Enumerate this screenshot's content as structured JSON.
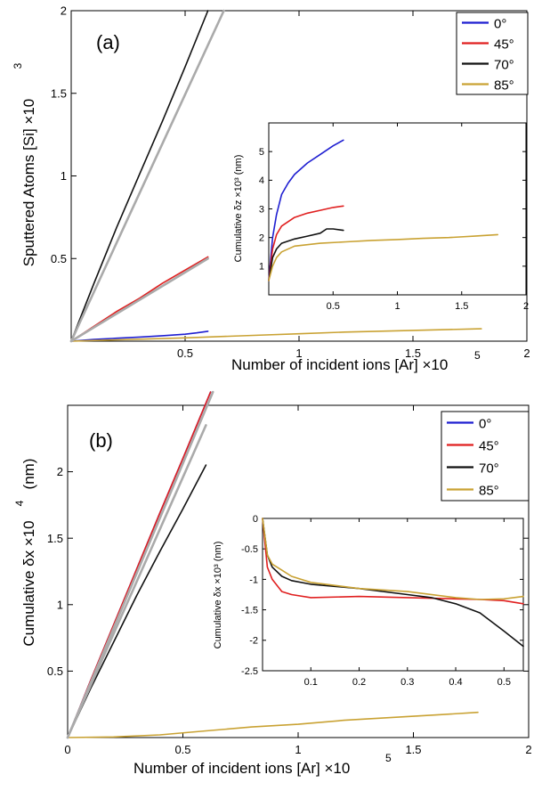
{
  "colors": {
    "deg0": "#1f1fd1",
    "deg45": "#e01f1f",
    "deg70": "#111111",
    "deg85": "#c9a233",
    "fit": "#aaaaaa"
  },
  "chart_data": [
    {
      "id": "a_main",
      "type": "line",
      "panel_label": "(a)",
      "xlabel": "Number of incident ions [Ar] ×10",
      "xlabel_exp": "5",
      "ylabel": "Sputtered Atoms [Si] ×10",
      "ylabel_exp": "3",
      "xlim": [
        0,
        2
      ],
      "ylim": [
        0,
        2
      ],
      "xticks": [
        {
          "v": 0.5,
          "label": "0.5"
        },
        {
          "v": 1,
          "label": "1"
        },
        {
          "v": 1.5,
          "label": "1.5"
        },
        {
          "v": 2,
          "label": "2"
        }
      ],
      "yticks": [
        {
          "v": 0.5,
          "label": "0.5"
        },
        {
          "v": 1,
          "label": "1"
        },
        {
          "v": 1.5,
          "label": "1.5"
        },
        {
          "v": 2,
          "label": "2"
        }
      ],
      "legend": [
        {
          "label": "0°",
          "color": "#1f1fd1"
        },
        {
          "label": "45°",
          "color": "#e01f1f"
        },
        {
          "label": "70°",
          "color": "#111111"
        },
        {
          "label": "85°",
          "color": "#c9a233"
        }
      ],
      "series": [
        {
          "name": "0°",
          "color": "#1f1fd1",
          "x": [
            0,
            0.05,
            0.1,
            0.2,
            0.3,
            0.4,
            0.5,
            0.55,
            0.6
          ],
          "y": [
            0,
            0.005,
            0.01,
            0.018,
            0.025,
            0.033,
            0.042,
            0.05,
            0.06
          ]
        },
        {
          "name": "45°",
          "color": "#e01f1f",
          "x": [
            0,
            0.1,
            0.2,
            0.3,
            0.4,
            0.5,
            0.6
          ],
          "y": [
            0,
            0.09,
            0.18,
            0.26,
            0.35,
            0.43,
            0.51
          ]
        },
        {
          "name": "70°",
          "color": "#111111",
          "x": [
            0,
            0.1,
            0.2,
            0.3,
            0.4,
            0.5,
            0.6
          ],
          "y": [
            0,
            0.35,
            0.69,
            1.01,
            1.33,
            1.66,
            2.0
          ]
        },
        {
          "name": "85°",
          "color": "#c9a233",
          "x": [
            0,
            0.2,
            0.5,
            0.8,
            1.0,
            1.2,
            1.5,
            1.8
          ],
          "y": [
            0,
            0.008,
            0.02,
            0.035,
            0.045,
            0.055,
            0.065,
            0.075
          ]
        },
        {
          "color": "#aaaaaa",
          "fit": true,
          "x": [
            0,
            0.67
          ],
          "y": [
            0,
            2.0
          ]
        },
        {
          "color": "#aaaaaa",
          "fit": true,
          "x": [
            0,
            0.6
          ],
          "y": [
            0,
            0.5
          ]
        }
      ]
    },
    {
      "id": "a_inset",
      "type": "line",
      "ylabel": "Cumulative δz ×10³ (nm)",
      "xlim": [
        0,
        2
      ],
      "ylim": [
        0,
        6
      ],
      "xticks": [
        {
          "v": 0.5,
          "label": "0.5"
        },
        {
          "v": 1,
          "label": "1"
        },
        {
          "v": 1.5,
          "label": "1.5"
        },
        {
          "v": 2,
          "label": "2"
        }
      ],
      "yticks": [
        {
          "v": 1,
          "label": "1"
        },
        {
          "v": 2,
          "label": "2"
        },
        {
          "v": 3,
          "label": "3"
        },
        {
          "v": 4,
          "label": "4"
        },
        {
          "v": 5,
          "label": "5"
        }
      ],
      "series": [
        {
          "name": "0°",
          "color": "#1f1fd1",
          "x": [
            0,
            0.03,
            0.06,
            0.1,
            0.15,
            0.2,
            0.3,
            0.4,
            0.5,
            0.58
          ],
          "y": [
            0.5,
            2.0,
            2.8,
            3.5,
            3.9,
            4.2,
            4.6,
            4.9,
            5.2,
            5.4
          ]
        },
        {
          "name": "45°",
          "color": "#e01f1f",
          "x": [
            0,
            0.03,
            0.06,
            0.1,
            0.2,
            0.3,
            0.4,
            0.5,
            0.58
          ],
          "y": [
            0.5,
            1.6,
            2.1,
            2.4,
            2.7,
            2.85,
            2.95,
            3.05,
            3.1
          ]
        },
        {
          "name": "70°",
          "color": "#111111",
          "x": [
            0,
            0.03,
            0.06,
            0.1,
            0.2,
            0.3,
            0.4,
            0.45,
            0.5,
            0.58
          ],
          "y": [
            0.5,
            1.3,
            1.6,
            1.8,
            1.95,
            2.05,
            2.15,
            2.3,
            2.3,
            2.25
          ]
        },
        {
          "name": "85°",
          "color": "#c9a233",
          "x": [
            0,
            0.03,
            0.06,
            0.1,
            0.2,
            0.4,
            0.6,
            0.8,
            1.0,
            1.2,
            1.4,
            1.6,
            1.78
          ],
          "y": [
            0.5,
            1.0,
            1.3,
            1.5,
            1.7,
            1.8,
            1.85,
            1.9,
            1.93,
            1.97,
            2.0,
            2.05,
            2.1
          ]
        }
      ]
    },
    {
      "id": "b_main",
      "type": "line",
      "panel_label": "(b)",
      "xlabel": "Number of incident ions [Ar] ×10",
      "xlabel_exp": "5",
      "ylabel": "Cumulative δx ×10",
      "ylabel_exp": "4",
      "ylabel_unit": "(nm)",
      "xlim": [
        0,
        2
      ],
      "ylim": [
        0,
        2.5
      ],
      "xticks": [
        {
          "v": 0,
          "label": "0"
        },
        {
          "v": 0.5,
          "label": "0.5"
        },
        {
          "v": 1,
          "label": "1"
        },
        {
          "v": 1.5,
          "label": "1.5"
        },
        {
          "v": 2,
          "label": "2"
        }
      ],
      "yticks": [
        {
          "v": 0.5,
          "label": "0.5"
        },
        {
          "v": 1,
          "label": "1"
        },
        {
          "v": 1.5,
          "label": "1.5"
        },
        {
          "v": 2,
          "label": "2"
        }
      ],
      "legend": [
        {
          "label": "0°",
          "color": "#1f1fd1"
        },
        {
          "label": "45°",
          "color": "#e01f1f"
        },
        {
          "label": "70°",
          "color": "#111111"
        },
        {
          "label": "85°",
          "color": "#c9a233"
        }
      ],
      "series": [
        {
          "name": "0°",
          "color": "#1f1fd1",
          "x": [
            0,
            0.1,
            0.2,
            0.3,
            0.4,
            0.5,
            0.62
          ],
          "y": [
            0,
            0.43,
            0.85,
            1.27,
            1.69,
            2.1,
            2.6
          ]
        },
        {
          "name": "45°",
          "color": "#e01f1f",
          "x": [
            0,
            0.1,
            0.2,
            0.3,
            0.4,
            0.5,
            0.62
          ],
          "y": [
            0,
            0.43,
            0.85,
            1.27,
            1.69,
            2.1,
            2.6
          ]
        },
        {
          "name": "70°",
          "color": "#111111",
          "x": [
            0,
            0.1,
            0.2,
            0.3,
            0.4,
            0.5,
            0.6
          ],
          "y": [
            0,
            0.37,
            0.72,
            1.07,
            1.4,
            1.72,
            2.05
          ]
        },
        {
          "name": "85°",
          "color": "#c9a233",
          "x": [
            0,
            0.2,
            0.4,
            0.6,
            0.8,
            1.0,
            1.2,
            1.4,
            1.6,
            1.78
          ],
          "y": [
            0,
            0.005,
            0.02,
            0.05,
            0.08,
            0.1,
            0.13,
            0.15,
            0.17,
            0.19
          ]
        },
        {
          "color": "#aaaaaa",
          "fit": true,
          "x": [
            0,
            0.63
          ],
          "y": [
            0,
            2.6
          ]
        },
        {
          "color": "#aaaaaa",
          "fit": true,
          "x": [
            0,
            0.6
          ],
          "y": [
            0,
            2.35
          ]
        }
      ]
    },
    {
      "id": "b_inset",
      "type": "line",
      "ylabel": "Cumulative δx ×10³ (nm)",
      "xlim": [
        0,
        0.54
      ],
      "ylim": [
        -2.5,
        0
      ],
      "xticks": [
        {
          "v": 0.1,
          "label": "0.1"
        },
        {
          "v": 0.2,
          "label": "0.2"
        },
        {
          "v": 0.3,
          "label": "0.3"
        },
        {
          "v": 0.4,
          "label": "0.4"
        },
        {
          "v": 0.5,
          "label": "0.5"
        }
      ],
      "yticks": [
        {
          "v": 0,
          "label": "0"
        },
        {
          "v": -0.5,
          "label": "-0.5"
        },
        {
          "v": -1,
          "label": "-1"
        },
        {
          "v": -1.5,
          "label": "-1.5"
        },
        {
          "v": -2,
          "label": "-2"
        },
        {
          "v": -2.5,
          "label": "-2.5"
        }
      ],
      "series": [
        {
          "name": "45°",
          "color": "#e01f1f",
          "x": [
            0,
            0.01,
            0.02,
            0.04,
            0.06,
            0.1,
            0.2,
            0.3,
            0.4,
            0.45,
            0.5,
            0.54
          ],
          "y": [
            0,
            -0.8,
            -1.0,
            -1.2,
            -1.25,
            -1.3,
            -1.28,
            -1.3,
            -1.32,
            -1.33,
            -1.35,
            -1.4
          ]
        },
        {
          "name": "70°",
          "color": "#111111",
          "x": [
            0,
            0.01,
            0.02,
            0.04,
            0.06,
            0.1,
            0.2,
            0.3,
            0.35,
            0.4,
            0.45,
            0.5,
            0.54
          ],
          "y": [
            0,
            -0.6,
            -0.8,
            -0.95,
            -1.02,
            -1.08,
            -1.15,
            -1.25,
            -1.3,
            -1.4,
            -1.55,
            -1.85,
            -2.1
          ]
        },
        {
          "name": "85°",
          "color": "#c9a233",
          "x": [
            0,
            0.01,
            0.02,
            0.04,
            0.06,
            0.1,
            0.2,
            0.3,
            0.4,
            0.45,
            0.5,
            0.54
          ],
          "y": [
            0,
            -0.6,
            -0.75,
            -0.85,
            -0.95,
            -1.05,
            -1.15,
            -1.2,
            -1.3,
            -1.33,
            -1.32,
            -1.28
          ]
        }
      ]
    }
  ]
}
